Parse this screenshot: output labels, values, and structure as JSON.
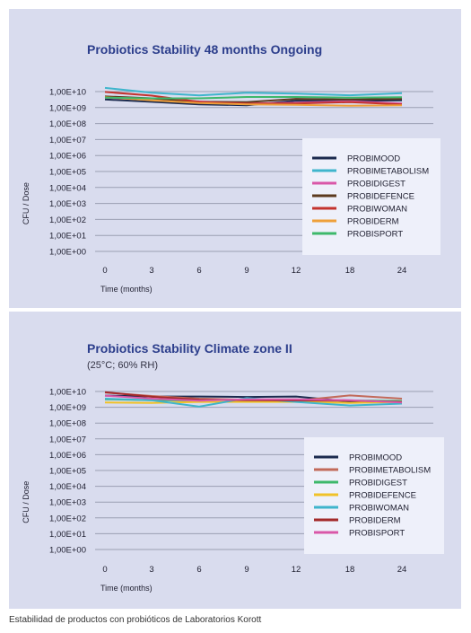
{
  "caption": "Estabilidad de productos con probióticos de Laboratorios Korott",
  "colors": {
    "title": "#2c3e8c",
    "background": "#d9dcee",
    "gridline": "#9a9fb2",
    "legend_bg": "#eef0fa"
  },
  "chart_data": [
    {
      "type": "line",
      "title": "Probiotics Stability 48 months Ongoing",
      "subtitle": "",
      "xlabel": "Time (months)",
      "ylabel": "CFU / Dose",
      "x": [
        0,
        3,
        6,
        9,
        12,
        18,
        24
      ],
      "yscale": "log",
      "ylim": [
        1,
        10000000000
      ],
      "yticks": [
        "1,00E+10",
        "1,00E+09",
        "1,00E+08",
        "1,00E+07",
        "1,00E+06",
        "1,00E+05",
        "1,00E+04",
        "1,00E+03",
        "1,00E+02",
        "1,00E+01",
        "1,00E+00"
      ],
      "ytick_values": [
        10,
        9,
        8,
        7,
        6,
        5,
        4,
        3,
        2,
        1,
        0
      ],
      "grid": true,
      "legend": "right",
      "series": [
        {
          "name": "PROBIMOOD",
          "color": "#1b2a4e",
          "values": [
            3200000000,
            2300000000,
            1600000000,
            1400000000,
            2700000000,
            2600000000,
            2800000000
          ]
        },
        {
          "name": "PROBIMETABOLISM",
          "color": "#3fb5cc",
          "values": [
            17000000000,
            8500000000,
            5800000000,
            8500000000,
            7500000000,
            5900000000,
            7900000000
          ]
        },
        {
          "name": "PROBIDIGEST",
          "color": "#d957a8",
          "values": [
            4200000000,
            3200000000,
            2400000000,
            1800000000,
            2000000000,
            2500000000,
            1800000000
          ]
        },
        {
          "name": "PROBIDEFENCE",
          "color": "#5c3a1e",
          "values": [
            5000000000,
            3800000000,
            2300000000,
            2200000000,
            3500000000,
            3200000000,
            3500000000
          ]
        },
        {
          "name": "PROBIWOMAN",
          "color": "#c4332e",
          "values": [
            9500000000,
            5600000000,
            2300000000,
            1800000000,
            1800000000,
            2200000000,
            1600000000
          ]
        },
        {
          "name": "PROBIDERM",
          "color": "#eea03a",
          "values": [
            4500000000,
            2800000000,
            1900000000,
            1600000000,
            1500000000,
            1300000000,
            1400000000
          ]
        },
        {
          "name": "PROBISPORT",
          "color": "#3db86b",
          "values": [
            4200000000,
            3800000000,
            3800000000,
            4600000000,
            4600000000,
            4200000000,
            4400000000
          ]
        }
      ]
    },
    {
      "type": "line",
      "title": "Probiotics Stability Climate zone II",
      "subtitle": "(25°C; 60% RH)",
      "xlabel": "Time (months)",
      "ylabel": "CFU / Dose",
      "x": [
        0,
        3,
        6,
        9,
        12,
        18,
        24
      ],
      "yscale": "log",
      "ylim": [
        1,
        10000000000
      ],
      "yticks": [
        "1,00E+10",
        "1,00E+09",
        "1,00E+08",
        "1,00E+07",
        "1,00E+06",
        "1,00E+05",
        "1,00E+04",
        "1,00E+03",
        "1,00E+02",
        "1,00E+01",
        "1,00E+00"
      ],
      "ytick_values": [
        10,
        9,
        8,
        7,
        6,
        5,
        4,
        3,
        2,
        1,
        0
      ],
      "grid": true,
      "legend": "right",
      "series": [
        {
          "name": "PROBIMOOD",
          "color": "#1b2a4e",
          "values": [
            5500000000,
            4800000000,
            4800000000,
            4500000000,
            4800000000,
            2300000000,
            2300000000
          ]
        },
        {
          "name": "PROBIMETABOLISM",
          "color": "#c26a5a",
          "values": [
            8500000000,
            5200000000,
            3500000000,
            3000000000,
            2600000000,
            5600000000,
            3500000000
          ]
        },
        {
          "name": "PROBIDIGEST",
          "color": "#3db86b",
          "values": [
            3200000000,
            2800000000,
            2700000000,
            3000000000,
            2700000000,
            2700000000,
            2500000000
          ]
        },
        {
          "name": "PROBIDEFENCE",
          "color": "#f0c229",
          "values": [
            2000000000,
            1900000000,
            2200000000,
            2200000000,
            2200000000,
            1900000000,
            2200000000
          ]
        },
        {
          "name": "PROBIWOMAN",
          "color": "#3fb5cc",
          "values": [
            3500000000,
            2800000000,
            1100000000,
            3800000000,
            2200000000,
            1300000000,
            1700000000
          ]
        },
        {
          "name": "PROBIDERM",
          "color": "#a32a2a",
          "values": [
            9000000000,
            4600000000,
            3000000000,
            2800000000,
            2700000000,
            2600000000,
            2200000000
          ]
        },
        {
          "name": "PROBISPORT",
          "color": "#d957a8",
          "values": [
            5500000000,
            3500000000,
            2600000000,
            3200000000,
            3200000000,
            2800000000,
            2000000000
          ]
        }
      ]
    }
  ]
}
